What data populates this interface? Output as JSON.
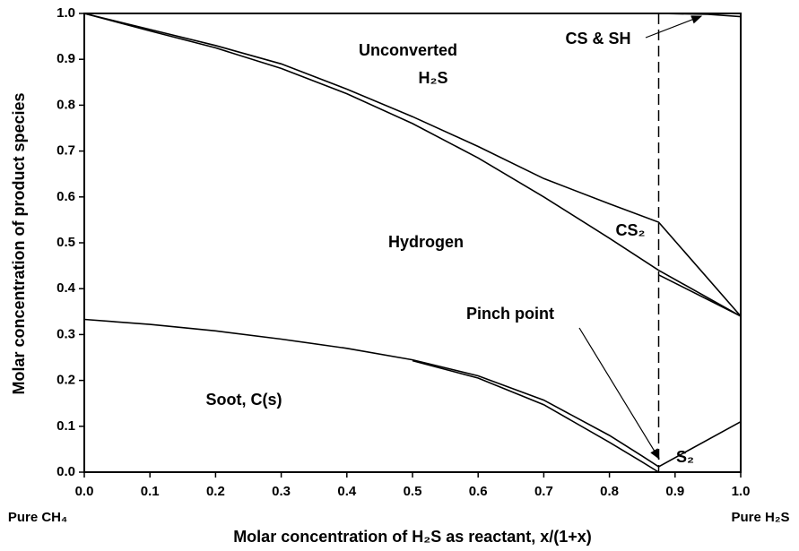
{
  "chart_data": {
    "type": "line",
    "xlabel": "Molar concentration of H₂S as reactant, x/(1+x)",
    "ylabel": "Molar concentration of product species",
    "end_labels": [
      "Pure CH₄",
      "Pure H₂S"
    ],
    "xlim": [
      0,
      1
    ],
    "ylim": [
      0,
      1
    ],
    "xticks": [
      {
        "value": 0,
        "label": "0.0"
      },
      0.1,
      0.2,
      0.3,
      0.4,
      0.5,
      0.6,
      0.7,
      0.8,
      0.9,
      {
        "value": 1,
        "label": "1.0"
      }
    ],
    "yticks": [
      {
        "value": 0,
        "label": "0.0"
      },
      0.1,
      0.2,
      0.3,
      0.4,
      0.5,
      0.6,
      0.7,
      0.8,
      0.9,
      {
        "value": 1,
        "label": "1.0"
      }
    ],
    "reference_line_x": 0.875,
    "color": "#000000",
    "series": [
      {
        "x": [
          0.875,
          0.95,
          1.0
        ],
        "values": [
          1.0,
          0.998,
          0.993
        ]
      },
      {
        "x": [
          0,
          0.1,
          0.2,
          0.3,
          0.4,
          0.5,
          0.6,
          0.7,
          0.8,
          0.875,
          1.0
        ],
        "values": [
          1.0,
          0.965,
          0.93,
          0.89,
          0.835,
          0.775,
          0.71,
          0.64,
          0.585,
          0.545,
          0.34
        ]
      },
      {
        "x": [
          0,
          0.1,
          0.2,
          0.3,
          0.4,
          0.5,
          0.6,
          0.7,
          0.8,
          0.875,
          1.0
        ],
        "values": [
          1.0,
          0.962,
          0.925,
          0.88,
          0.825,
          0.76,
          0.685,
          0.6,
          0.51,
          0.44,
          0.34
        ]
      },
      {
        "x": [
          0.875,
          1.0
        ],
        "values": [
          0.43,
          0.34
        ]
      },
      {
        "x": [
          0,
          0.1,
          0.2,
          0.3,
          0.4,
          0.5,
          0.6,
          0.7,
          0.8,
          0.85,
          0.875,
          1.0
        ],
        "values": [
          0.333,
          0.322,
          0.308,
          0.29,
          0.27,
          0.245,
          0.21,
          0.157,
          0.08,
          0.035,
          0.012,
          0.11
        ]
      },
      {
        "x": [
          0.5,
          0.6,
          0.7,
          0.8,
          0.85,
          0.875
        ],
        "values": [
          0.243,
          0.205,
          0.147,
          0.065,
          0.022,
          0.0
        ]
      }
    ],
    "annotations": [
      "Unconverted",
      "H₂S",
      "Hydrogen",
      "CS₂",
      "Soot, C(s)",
      "Pinch point",
      "S₂",
      "CS & SH"
    ]
  }
}
